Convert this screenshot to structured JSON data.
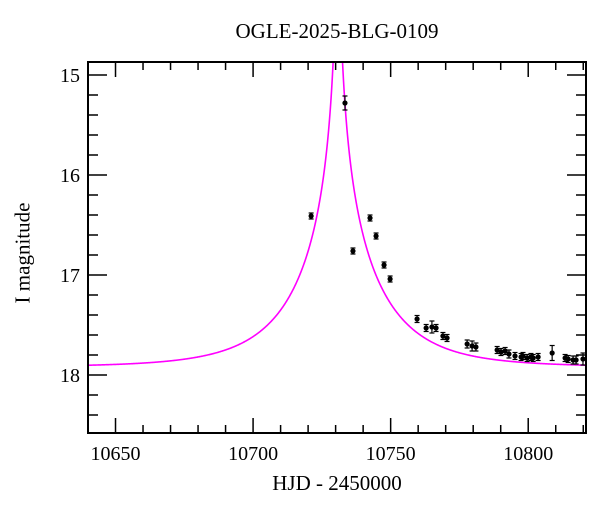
{
  "chart_data": {
    "type": "scatter",
    "title": "OGLE-2025-BLG-0109",
    "xlabel": "HJD - 2450000",
    "ylabel": "I magnitude",
    "x_range": [
      10640,
      10821
    ],
    "y_range_mag": [
      14.87,
      18.58
    ],
    "y_axis_inverted": true,
    "grid": false,
    "x_major_ticks": [
      10650,
      10700,
      10750,
      10800
    ],
    "x_minor_step": 10,
    "y_major_ticks": [
      15,
      16,
      17,
      18
    ],
    "y_minor_step": 0.2,
    "axis_color": "#000000",
    "points_color": "#000000",
    "model_curve": {
      "type": "paczynski_microlensing",
      "color": "#ff00ff",
      "t0": 10730.8,
      "tE": 30,
      "u0": 0.02,
      "baseline_mag": 17.92
    },
    "points": [
      {
        "t": 10721.1,
        "mag": 16.41,
        "err": 0.03
      },
      {
        "t": 10733.4,
        "mag": 15.28,
        "err": 0.07
      },
      {
        "t": 10736.3,
        "mag": 16.76,
        "err": 0.03
      },
      {
        "t": 10742.5,
        "mag": 16.43,
        "err": 0.03
      },
      {
        "t": 10744.7,
        "mag": 16.61,
        "err": 0.03
      },
      {
        "t": 10747.6,
        "mag": 16.9,
        "err": 0.03
      },
      {
        "t": 10749.8,
        "mag": 17.04,
        "err": 0.03
      },
      {
        "t": 10759.6,
        "mag": 17.44,
        "err": 0.035
      },
      {
        "t": 10762.9,
        "mag": 17.53,
        "err": 0.035
      },
      {
        "t": 10765.0,
        "mag": 17.52,
        "err": 0.06
      },
      {
        "t": 10766.5,
        "mag": 17.53,
        "err": 0.035
      },
      {
        "t": 10769.0,
        "mag": 17.61,
        "err": 0.035
      },
      {
        "t": 10770.5,
        "mag": 17.63,
        "err": 0.035
      },
      {
        "t": 10777.8,
        "mag": 17.69,
        "err": 0.04
      },
      {
        "t": 10779.6,
        "mag": 17.71,
        "err": 0.05
      },
      {
        "t": 10781.0,
        "mag": 17.72,
        "err": 0.04
      },
      {
        "t": 10788.7,
        "mag": 17.75,
        "err": 0.035
      },
      {
        "t": 10790.1,
        "mag": 17.77,
        "err": 0.035
      },
      {
        "t": 10791.6,
        "mag": 17.76,
        "err": 0.035
      },
      {
        "t": 10793.0,
        "mag": 17.79,
        "err": 0.04
      },
      {
        "t": 10795.2,
        "mag": 17.81,
        "err": 0.035
      },
      {
        "t": 10797.4,
        "mag": 17.82,
        "err": 0.035
      },
      {
        "t": 10798.1,
        "mag": 17.81,
        "err": 0.035
      },
      {
        "t": 10799.6,
        "mag": 17.83,
        "err": 0.035
      },
      {
        "t": 10801.0,
        "mag": 17.82,
        "err": 0.035
      },
      {
        "t": 10801.8,
        "mag": 17.83,
        "err": 0.035
      },
      {
        "t": 10803.6,
        "mag": 17.82,
        "err": 0.035
      },
      {
        "t": 10808.7,
        "mag": 17.78,
        "err": 0.075
      },
      {
        "t": 10813.4,
        "mag": 17.83,
        "err": 0.035
      },
      {
        "t": 10814.5,
        "mag": 17.84,
        "err": 0.035
      },
      {
        "t": 10816.3,
        "mag": 17.85,
        "err": 0.04
      },
      {
        "t": 10817.4,
        "mag": 17.85,
        "err": 0.04
      },
      {
        "t": 10819.9,
        "mag": 17.84,
        "err": 0.06
      }
    ]
  }
}
